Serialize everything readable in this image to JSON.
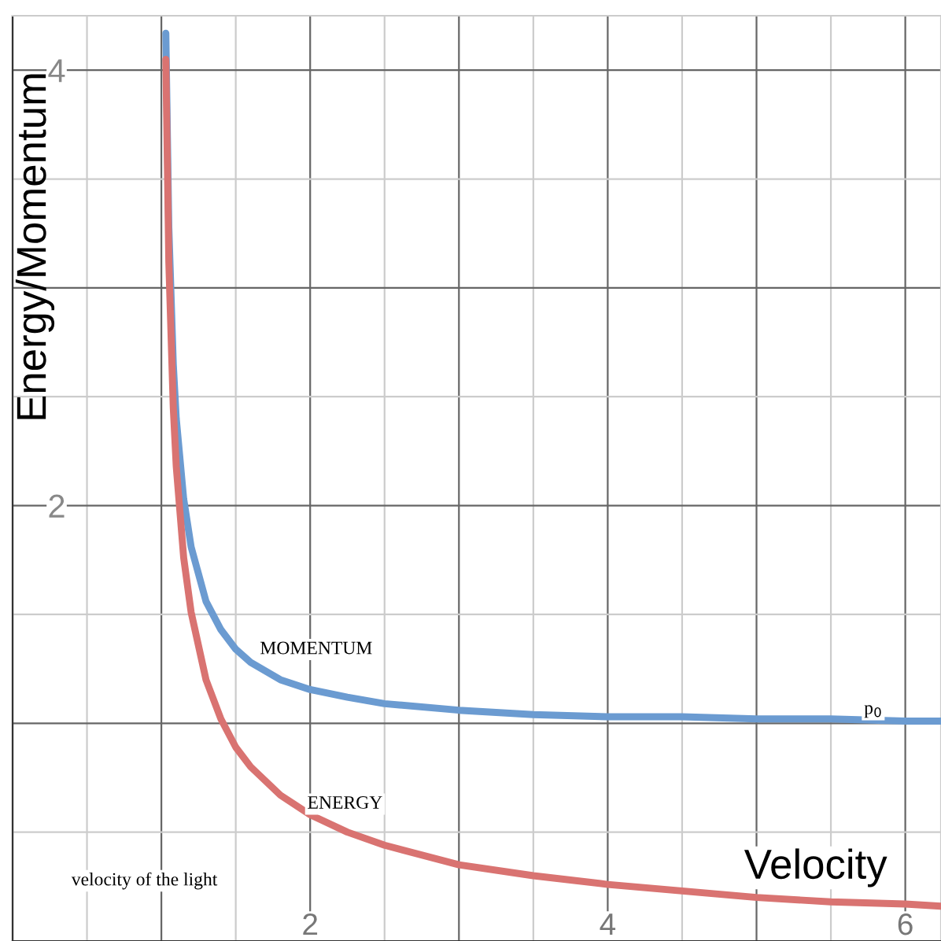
{
  "chart_data": {
    "type": "line",
    "xlabel": "Velocity",
    "ylabel": "Energy/Momentum",
    "xlim": [
      0,
      6.24
    ],
    "ylim": [
      0,
      4.25
    ],
    "xticks": [
      {
        "value": 0,
        "label": null
      },
      {
        "value": 0.5,
        "label": null
      },
      {
        "value": 1,
        "label": null
      },
      {
        "value": 1.5,
        "label": null
      },
      2,
      {
        "value": 2.5,
        "label": null
      },
      {
        "value": 3,
        "label": null
      },
      {
        "value": 3.5,
        "label": null
      },
      4,
      {
        "value": 4.5,
        "label": null
      },
      {
        "value": 5,
        "label": null
      },
      {
        "value": 5.5,
        "label": null
      },
      6
    ],
    "yticks": [
      {
        "value": 0,
        "label": null
      },
      {
        "value": 0.5,
        "label": null
      },
      {
        "value": 1,
        "label": null
      },
      {
        "value": 1.5,
        "label": null
      },
      2,
      {
        "value": 2.5,
        "label": null
      },
      {
        "value": 3,
        "label": null
      },
      {
        "value": 3.5,
        "label": null
      },
      4
    ],
    "grid": true,
    "marker": "none",
    "line_style": "solid",
    "x": [
      1.03,
      1.05,
      1.08,
      1.1,
      1.15,
      1.2,
      1.3,
      1.4,
      1.5,
      1.6,
      1.8,
      2,
      2.25,
      2.5,
      3,
      3.5,
      4,
      4.5,
      5,
      5.5,
      6,
      6.24
    ],
    "series": [
      {
        "color": "#6b9bd1",
        "values": [
          4.17,
          3.28,
          2.65,
          2.4,
          2.03,
          1.81,
          1.56,
          1.43,
          1.34,
          1.28,
          1.2,
          1.155,
          1.12,
          1.09,
          1.06,
          1.04,
          1.03,
          1.03,
          1.02,
          1.02,
          1.01,
          1.01
        ]
      },
      {
        "color": "#d97371",
        "values": [
          4.05,
          3.12,
          2.45,
          2.18,
          1.76,
          1.51,
          1.2,
          1.02,
          0.89,
          0.8,
          0.67,
          0.58,
          0.5,
          0.44,
          0.35,
          0.3,
          0.26,
          0.23,
          0.2,
          0.18,
          0.17,
          0.16
        ]
      }
    ],
    "annotations": [
      "MOMENTUM",
      "ENERGY",
      "p$_{0}$",
      "velocity of the light"
    ]
  }
}
